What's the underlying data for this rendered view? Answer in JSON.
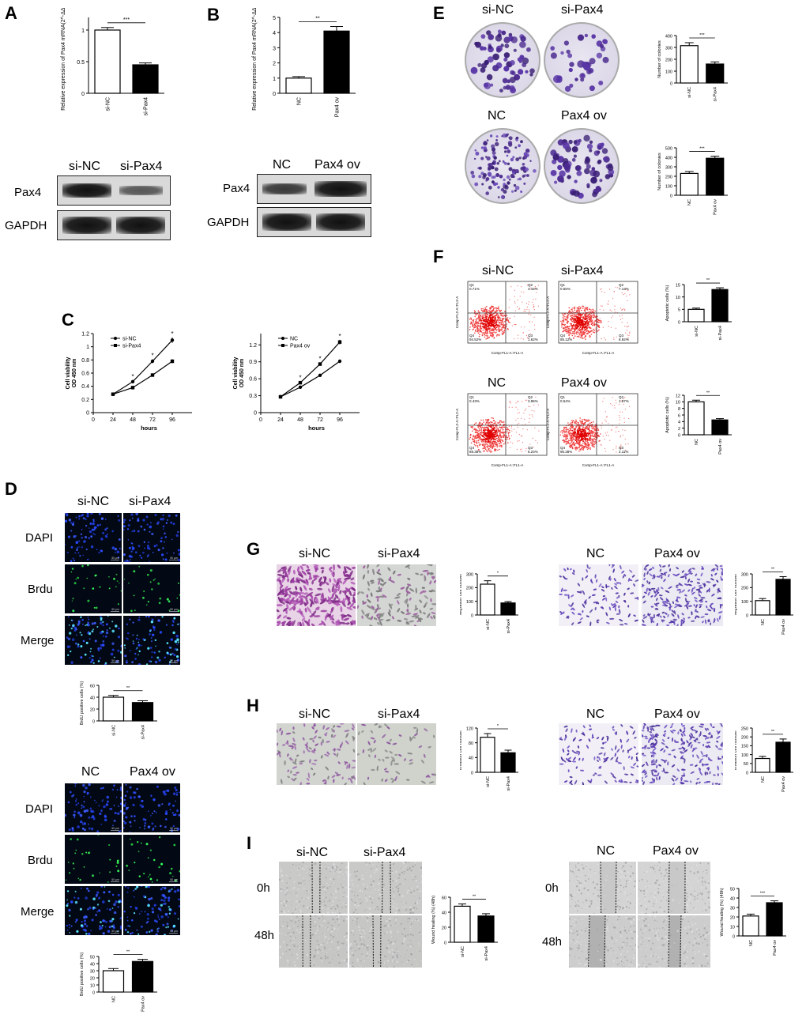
{
  "panels": {
    "A": {
      "label": "A",
      "ylabel": "Relative expression of Pax4 mRNA(2^-ΔΔCt)",
      "sig": "***",
      "blot_groups": [
        "si-NC",
        "si-Pax4"
      ],
      "blot_rows": [
        "Pax4",
        "GAPDH"
      ]
    },
    "B": {
      "label": "B",
      "ylabel": "Relative expression of Pax4 mRNA(2^-ΔΔCt)",
      "sig": "**",
      "blot_groups": [
        "NC",
        "Pax4 ov"
      ],
      "blot_rows": [
        "Pax4",
        "GAPDH"
      ]
    },
    "C": {
      "label": "C"
    },
    "D": {
      "label": "D",
      "groups1": [
        "si-NC",
        "si-Pax4"
      ],
      "groups2": [
        "NC",
        "Pax4 ov"
      ],
      "rows": [
        "DAPI",
        "Brdu",
        "Merge"
      ],
      "scale": "50 μm",
      "bar_ylabel": "BrdU positive cells (%)",
      "sig1": "**",
      "sig2": "**"
    },
    "E": {
      "label": "E",
      "groups1": [
        "si-NC",
        "si-Pax4"
      ],
      "groups2": [
        "NC",
        "Pax4 ov"
      ],
      "bar_ylabel": "Number of colonies",
      "sig1": "***",
      "sig2": "***"
    },
    "F": {
      "label": "F",
      "groups1": [
        "si-NC",
        "si-Pax4"
      ],
      "groups2": [
        "NC",
        "Pax4 ov"
      ],
      "xaxis": "Comp-FL1-A::FL1-A",
      "yaxis": "Comp-FL2-A::FL2-A",
      "quadrants": [
        {
          "Q1": "0.71%",
          "Q2": "3.15%",
          "Q3": "1.62%",
          "Q4": "94.52%"
        },
        {
          "Q1": "0.55%",
          "Q2": "7.13%",
          "Q3": "6.92%",
          "Q4": "85.12%"
        },
        {
          "Q1": "0.43%",
          "Q2": "3.95%",
          "Q3": "6.24%",
          "Q4": "89.38%"
        },
        {
          "Q1": "0.54%",
          "Q2": "1.97%",
          "Q3": "2.11%",
          "Q4": "95.38%"
        }
      ],
      "bar_ylabel": "Apoptotic cells (%)",
      "sig1": "**",
      "sig2": "**"
    },
    "G": {
      "label": "G",
      "groups1": [
        "si-NC",
        "si-Pax4"
      ],
      "groups2": [
        "NC",
        "Pax4 ov"
      ],
      "bar_ylabel": "Migration cell number",
      "sig1": "*",
      "sig2": "**"
    },
    "H": {
      "label": "H",
      "groups1": [
        "si-NC",
        "si-Pax4"
      ],
      "groups2": [
        "NC",
        "Pax4 ov"
      ],
      "bar_ylabel": "Invasion cell number",
      "sig1": "*",
      "sig2": "**"
    },
    "I": {
      "label": "I",
      "groups1": [
        "si-NC",
        "si-Pax4"
      ],
      "groups2": [
        "NC",
        "Pax4 ov"
      ],
      "rows": [
        "0h",
        "48h"
      ],
      "bar_ylabel": "Wound healing (%) (48h)",
      "sig1": "**",
      "sig2": "***"
    }
  },
  "chart_data": [
    {
      "id": "A",
      "type": "bar",
      "categories": [
        "si-NC",
        "si-Pax4"
      ],
      "values": [
        1.0,
        0.45
      ],
      "errors": [
        0.04,
        0.03
      ],
      "ylim": [
        0,
        1.2
      ],
      "yticks": [
        0.0,
        0.5,
        1.0
      ],
      "ylabel": "Relative expression of Pax4 mRNA(2^-ΔΔCt)"
    },
    {
      "id": "B",
      "type": "bar",
      "categories": [
        "NC",
        "Pax4 ov"
      ],
      "values": [
        1.0,
        4.1
      ],
      "errors": [
        0.1,
        0.3
      ],
      "ylim": [
        0,
        5
      ],
      "yticks": [
        0,
        1,
        2,
        3,
        4,
        5
      ],
      "ylabel": "Relative expression of Pax4 mRNA(2^-ΔΔCt)"
    },
    {
      "id": "C1",
      "type": "line",
      "x": [
        24,
        48,
        72,
        96
      ],
      "xlabel": "hours",
      "ylabel": "Cell viability OD 450 nm",
      "ylim": [
        0,
        1.2
      ],
      "yticks": [
        0.0,
        0.2,
        0.4,
        0.6,
        0.8,
        1.0,
        1.2
      ],
      "series": [
        {
          "name": "si-NC",
          "values": [
            0.28,
            0.47,
            0.78,
            1.1
          ],
          "errors": [
            0.01,
            0.02,
            0.03,
            0.04
          ]
        },
        {
          "name": "si-Pax4",
          "values": [
            0.28,
            0.38,
            0.57,
            0.78
          ],
          "errors": [
            0.01,
            0.02,
            0.02,
            0.03
          ]
        }
      ],
      "annotations": [
        "*",
        "*",
        "*"
      ]
    },
    {
      "id": "C2",
      "type": "line",
      "x": [
        24,
        48,
        72,
        96
      ],
      "xlabel": "hours",
      "ylabel": "Cell viability OD 450 nm",
      "ylim": [
        0,
        1.4
      ],
      "yticks": [
        0.0,
        0.3,
        0.6,
        0.9,
        1.2
      ],
      "series": [
        {
          "name": "NC",
          "values": [
            0.28,
            0.45,
            0.66,
            0.91
          ],
          "errors": [
            0.01,
            0.02,
            0.02,
            0.03
          ]
        },
        {
          "name": "Pax4 ov",
          "values": [
            0.28,
            0.53,
            0.86,
            1.25
          ],
          "errors": [
            0.01,
            0.02,
            0.03,
            0.04
          ]
        }
      ],
      "annotations": [
        "*",
        "*",
        "*"
      ]
    },
    {
      "id": "D1",
      "type": "bar",
      "categories": [
        "si-NC",
        "si-Pax4"
      ],
      "values": [
        40,
        31
      ],
      "errors": [
        3,
        3
      ],
      "ylim": [
        0,
        60
      ],
      "yticks": [
        0,
        20,
        40,
        60
      ],
      "ylabel": "BrdU positive cells (%)"
    },
    {
      "id": "D2",
      "type": "bar",
      "categories": [
        "NC",
        "Pax4 ov"
      ],
      "values": [
        30,
        43
      ],
      "errors": [
        3,
        3
      ],
      "ylim": [
        0,
        50
      ],
      "yticks": [
        0,
        10,
        20,
        30,
        40,
        50
      ],
      "ylabel": "BrdU positive cells (%)"
    },
    {
      "id": "E1",
      "type": "bar",
      "categories": [
        "si-NC",
        "si-Pax4"
      ],
      "values": [
        315,
        160
      ],
      "errors": [
        25,
        18
      ],
      "ylim": [
        0,
        400
      ],
      "yticks": [
        0,
        100,
        200,
        300,
        400
      ],
      "ylabel": "Number of colonies"
    },
    {
      "id": "E2",
      "type": "bar",
      "categories": [
        "NC",
        "Pax4 ov"
      ],
      "values": [
        230,
        390
      ],
      "errors": [
        20,
        22
      ],
      "ylim": [
        0,
        500
      ],
      "yticks": [
        0,
        100,
        200,
        300,
        400,
        500
      ],
      "ylabel": "Number of colonies"
    },
    {
      "id": "F1",
      "type": "bar",
      "categories": [
        "si-NC",
        "si-Pax4"
      ],
      "values": [
        5,
        13
      ],
      "errors": [
        0.5,
        0.7
      ],
      "ylim": [
        0,
        15
      ],
      "yticks": [
        0,
        5,
        10,
        15
      ],
      "ylabel": "Apoptotic cells (%)"
    },
    {
      "id": "F2",
      "type": "bar",
      "categories": [
        "NC",
        "Pax4 ov"
      ],
      "values": [
        10,
        4.5
      ],
      "errors": [
        0.5,
        0.4
      ],
      "ylim": [
        0,
        12
      ],
      "yticks": [
        0,
        2,
        4,
        6,
        8,
        10,
        12
      ],
      "ylabel": "Apoptotic cells (%)"
    },
    {
      "id": "G1",
      "type": "bar",
      "categories": [
        "si-NC",
        "si-Pax4"
      ],
      "values": [
        225,
        88
      ],
      "errors": [
        25,
        10
      ],
      "ylim": [
        0,
        300
      ],
      "yticks": [
        0,
        100,
        200,
        300
      ],
      "ylabel": "Migration cell number"
    },
    {
      "id": "G2",
      "type": "bar",
      "categories": [
        "NC",
        "Pax4 ov"
      ],
      "values": [
        105,
        260
      ],
      "errors": [
        15,
        20
      ],
      "ylim": [
        0,
        300
      ],
      "yticks": [
        0,
        100,
        200,
        300
      ],
      "ylabel": "Migration cell number"
    },
    {
      "id": "H1",
      "type": "bar",
      "categories": [
        "si-NC",
        "si-Pax4"
      ],
      "values": [
        95,
        53
      ],
      "errors": [
        10,
        7
      ],
      "ylim": [
        0,
        120
      ],
      "yticks": [
        0,
        40,
        80,
        120
      ],
      "ylabel": "Invasion cell number"
    },
    {
      "id": "H2",
      "type": "bar",
      "categories": [
        "NC",
        "Pax4 ov"
      ],
      "values": [
        78,
        170
      ],
      "errors": [
        12,
        18
      ],
      "ylim": [
        0,
        250
      ],
      "yticks": [
        0,
        50,
        100,
        150,
        200,
        250
      ],
      "ylabel": "Invasion cell number"
    },
    {
      "id": "I1",
      "type": "bar",
      "categories": [
        "si-NC",
        "si-Pax4"
      ],
      "values": [
        48,
        35
      ],
      "errors": [
        3,
        3
      ],
      "ylim": [
        0,
        60
      ],
      "yticks": [
        0,
        20,
        40,
        60
      ],
      "ylabel": "Wound healing (%) (48h)"
    },
    {
      "id": "I2",
      "type": "bar",
      "categories": [
        "NC",
        "Pax4 ov"
      ],
      "values": [
        21,
        35
      ],
      "errors": [
        2,
        2
      ],
      "ylim": [
        0,
        50
      ],
      "yticks": [
        0,
        10,
        20,
        30,
        40,
        50
      ],
      "ylabel": "Wound healing (%) (48h)"
    }
  ]
}
